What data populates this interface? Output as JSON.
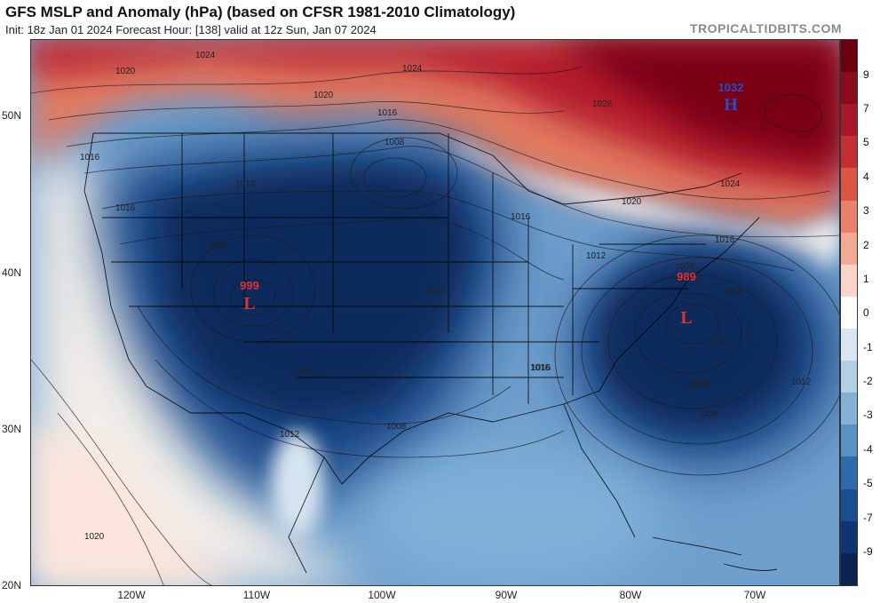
{
  "header": {
    "title": "GFS MSLP and Anomaly (hPa) (based on CFSR 1981-2010 Climatology)",
    "subtitle": "Init: 18z Jan 01 2024   Forecast Hour: [138]   valid at 12z Sun, Jan 07 2024",
    "brand": "TROPICALTIDBITS.COM"
  },
  "axes": {
    "lat_labels": [
      "50N",
      "40N",
      "30N",
      "20N"
    ],
    "lon_labels": [
      "120W",
      "110W",
      "100W",
      "90W",
      "80W",
      "70W"
    ]
  },
  "colorbar": {
    "ticks": [
      "9",
      "7",
      "5",
      "4",
      "3",
      "2",
      "1",
      "0",
      "-1",
      "-2",
      "-3",
      "-4",
      "-5",
      "-7",
      "-9"
    ],
    "colors": [
      "#6b0010",
      "#8a0b1c",
      "#a8172a",
      "#c32f33",
      "#d95642",
      "#e8806a",
      "#f3aa95",
      "#fbd3c8",
      "#ffffff",
      "#d8e6f2",
      "#b1cfe5",
      "#84b2d6",
      "#5a91c5",
      "#2f6aac",
      "#1a4f91",
      "#0e3572",
      "#0a2552"
    ]
  },
  "systems": [
    {
      "type": "L",
      "value": "999",
      "color": "#e03030"
    },
    {
      "type": "L",
      "value": "989",
      "color": "#e03030"
    },
    {
      "type": "H",
      "value": "1032",
      "color": "#2050c8"
    }
  ],
  "isobar_labels": [
    "1024",
    "1020",
    "1024",
    "1020",
    "1016",
    "1016",
    "1008",
    "1012",
    "1016",
    "1016",
    "1024",
    "1020",
    "1016",
    "1008",
    "1012",
    "1008",
    "1012",
    "1016",
    "1012",
    "1004",
    "1008",
    "1012",
    "1016",
    "1004",
    "1000",
    "996",
    "1008",
    "1008",
    "1012",
    "1020",
    "1028"
  ]
}
